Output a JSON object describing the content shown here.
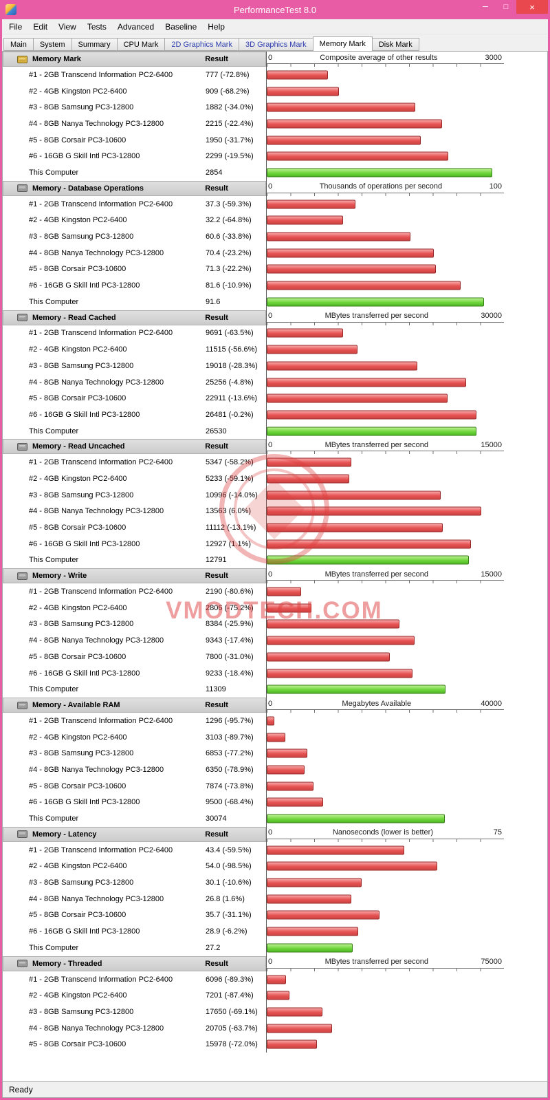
{
  "window": {
    "title": "PerformanceTest 8.0",
    "status_bar": {
      "text": "Ready"
    },
    "controls": {
      "minimize": "─",
      "maximize": "□",
      "close": "×"
    }
  },
  "colors": {
    "titlebar": "#e85ca6",
    "close_button": "#e9484f",
    "section_header_bg": "#e0e0e0",
    "bar_red": "#e65252",
    "bar_red_border": "#972828",
    "bar_green": "#6fd63c",
    "bar_green_border": "#357f14"
  },
  "menu": {
    "items": [
      "File",
      "Edit",
      "View",
      "Tests",
      "Advanced",
      "Baseline",
      "Help"
    ]
  },
  "tabs": [
    {
      "label": "Main"
    },
    {
      "label": "System"
    },
    {
      "label": "Summary"
    },
    {
      "label": "CPU Mark"
    },
    {
      "label": "2D Graphics Mark",
      "blue": true
    },
    {
      "label": "3D Graphics Mark",
      "blue": true
    },
    {
      "label": "Memory Mark",
      "active": true
    },
    {
      "label": "Disk Mark"
    }
  ],
  "table": {
    "result_header": "Result"
  },
  "watermark": {
    "text": "VMODTECH.COM"
  },
  "sections": [
    {
      "title": "Memory Mark",
      "scale": {
        "min": "0",
        "max_label": "3000",
        "max": 3000,
        "title": "Composite average of other results"
      },
      "rows": [
        {
          "name": "#1 - 2GB Transcend Information PC2-6400",
          "result": "777 (-72.8%)",
          "value": 777
        },
        {
          "name": "#2 - 4GB Kingston PC2-6400",
          "result": "909 (-68.2%)",
          "value": 909
        },
        {
          "name": "#3 - 8GB Samsung PC3-12800",
          "result": "1882 (-34.0%)",
          "value": 1882
        },
        {
          "name": "#4 - 8GB Nanya Technology PC3-12800",
          "result": "2215 (-22.4%)",
          "value": 2215
        },
        {
          "name": "#5 - 8GB Corsair PC3-10600",
          "result": "1950 (-31.7%)",
          "value": 1950
        },
        {
          "name": "#6 - 16GB G Skill Intl PC3-12800",
          "result": "2299 (-19.5%)",
          "value": 2299
        },
        {
          "name": "This Computer",
          "result": "2854",
          "value": 2854,
          "green": true
        }
      ]
    },
    {
      "title": "Memory - Database Operations",
      "scale": {
        "min": "0",
        "max_label": "100",
        "max": 100,
        "title": "Thousands of operations per second"
      },
      "rows": [
        {
          "name": "#1 - 2GB Transcend Information PC2-6400",
          "result": "37.3 (-59.3%)",
          "value": 37.3
        },
        {
          "name": "#2 - 4GB Kingston PC2-6400",
          "result": "32.2 (-64.8%)",
          "value": 32.2
        },
        {
          "name": "#3 - 8GB Samsung PC3-12800",
          "result": "60.6 (-33.8%)",
          "value": 60.6
        },
        {
          "name": "#4 - 8GB Nanya Technology PC3-12800",
          "result": "70.4 (-23.2%)",
          "value": 70.4
        },
        {
          "name": "#5 - 8GB Corsair PC3-10600",
          "result": "71.3 (-22.2%)",
          "value": 71.3
        },
        {
          "name": "#6 - 16GB G Skill Intl PC3-12800",
          "result": "81.6 (-10.9%)",
          "value": 81.6
        },
        {
          "name": "This Computer",
          "result": "91.6",
          "value": 91.6,
          "green": true
        }
      ]
    },
    {
      "title": "Memory - Read Cached",
      "scale": {
        "min": "0",
        "max_label": "30000",
        "max": 30000,
        "title": "MBytes transferred per second"
      },
      "rows": [
        {
          "name": "#1 - 2GB Transcend Information PC2-6400",
          "result": "9691 (-63.5%)",
          "value": 9691
        },
        {
          "name": "#2 - 4GB Kingston PC2-6400",
          "result": "11515 (-56.6%)",
          "value": 11515
        },
        {
          "name": "#3 - 8GB Samsung PC3-12800",
          "result": "19018 (-28.3%)",
          "value": 19018
        },
        {
          "name": "#4 - 8GB Nanya Technology PC3-12800",
          "result": "25256 (-4.8%)",
          "value": 25256
        },
        {
          "name": "#5 - 8GB Corsair PC3-10600",
          "result": "22911 (-13.6%)",
          "value": 22911
        },
        {
          "name": "#6 - 16GB G Skill Intl PC3-12800",
          "result": "26481 (-0.2%)",
          "value": 26481
        },
        {
          "name": "This Computer",
          "result": "26530",
          "value": 26530,
          "green": true
        }
      ]
    },
    {
      "title": "Memory - Read Uncached",
      "scale": {
        "min": "0",
        "max_label": "15000",
        "max": 15000,
        "title": "MBytes transferred per second"
      },
      "rows": [
        {
          "name": "#1 - 2GB Transcend Information PC2-6400",
          "result": "5347 (-58.2%)",
          "value": 5347
        },
        {
          "name": "#2 - 4GB Kingston PC2-6400",
          "result": "5233 (-59.1%)",
          "value": 5233
        },
        {
          "name": "#3 - 8GB Samsung PC3-12800",
          "result": "10996 (-14.0%)",
          "value": 10996
        },
        {
          "name": "#4 - 8GB Nanya Technology PC3-12800",
          "result": "13563 (6.0%)",
          "value": 13563
        },
        {
          "name": "#5 - 8GB Corsair PC3-10600",
          "result": "11112 (-13.1%)",
          "value": 11112
        },
        {
          "name": "#6 - 16GB G Skill Intl PC3-12800",
          "result": "12927 (1.1%)",
          "value": 12927
        },
        {
          "name": "This Computer",
          "result": "12791",
          "value": 12791,
          "green": true
        }
      ]
    },
    {
      "title": "Memory - Write",
      "scale": {
        "min": "0",
        "max_label": "15000",
        "max": 15000,
        "title": "MBytes transferred per second"
      },
      "rows": [
        {
          "name": "#1 - 2GB Transcend Information PC2-6400",
          "result": "2190 (-80.6%)",
          "value": 2190
        },
        {
          "name": "#2 - 4GB Kingston PC2-6400",
          "result": "2806 (-75.2%)",
          "value": 2806
        },
        {
          "name": "#3 - 8GB Samsung PC3-12800",
          "result": "8384 (-25.9%)",
          "value": 8384
        },
        {
          "name": "#4 - 8GB Nanya Technology PC3-12800",
          "result": "9343 (-17.4%)",
          "value": 9343
        },
        {
          "name": "#5 - 8GB Corsair PC3-10600",
          "result": "7800 (-31.0%)",
          "value": 7800
        },
        {
          "name": "#6 - 16GB G Skill Intl PC3-12800",
          "result": "9233 (-18.4%)",
          "value": 9233
        },
        {
          "name": "This Computer",
          "result": "11309",
          "value": 11309,
          "green": true
        }
      ]
    },
    {
      "title": "Memory - Available RAM",
      "scale": {
        "min": "0",
        "max_label": "40000",
        "max": 40000,
        "title": "Megabytes Available"
      },
      "rows": [
        {
          "name": "#1 - 2GB Transcend Information PC2-6400",
          "result": "1296 (-95.7%)",
          "value": 1296
        },
        {
          "name": "#2 - 4GB Kingston PC2-6400",
          "result": "3103 (-89.7%)",
          "value": 3103
        },
        {
          "name": "#3 - 8GB Samsung PC3-12800",
          "result": "6853 (-77.2%)",
          "value": 6853
        },
        {
          "name": "#4 - 8GB Nanya Technology PC3-12800",
          "result": "6350 (-78.9%)",
          "value": 6350
        },
        {
          "name": "#5 - 8GB Corsair PC3-10600",
          "result": "7874 (-73.8%)",
          "value": 7874
        },
        {
          "name": "#6 - 16GB G Skill Intl PC3-12800",
          "result": "9500 (-68.4%)",
          "value": 9500
        },
        {
          "name": "This Computer",
          "result": "30074",
          "value": 30074,
          "green": true
        }
      ]
    },
    {
      "title": "Memory - Latency",
      "scale": {
        "min": "0",
        "max_label": "75",
        "max": 75,
        "title": "Nanoseconds (lower is better)"
      },
      "rows": [
        {
          "name": "#1 - 2GB Transcend Information PC2-6400",
          "result": "43.4 (-59.5%)",
          "value": 43.4
        },
        {
          "name": "#2 - 4GB Kingston PC2-6400",
          "result": "54.0 (-98.5%)",
          "value": 54.0
        },
        {
          "name": "#3 - 8GB Samsung PC3-12800",
          "result": "30.1 (-10.6%)",
          "value": 30.1
        },
        {
          "name": "#4 - 8GB Nanya Technology PC3-12800",
          "result": "26.8 (1.6%)",
          "value": 26.8
        },
        {
          "name": "#5 - 8GB Corsair PC3-10600",
          "result": "35.7 (-31.1%)",
          "value": 35.7
        },
        {
          "name": "#6 - 16GB G Skill Intl PC3-12800",
          "result": "28.9 (-6.2%)",
          "value": 28.9
        },
        {
          "name": "This Computer",
          "result": "27.2",
          "value": 27.2,
          "green": true
        }
      ]
    },
    {
      "title": "Memory - Threaded",
      "scale": {
        "min": "0",
        "max_label": "75000",
        "max": 75000,
        "title": "MBytes transferred per second"
      },
      "rows": [
        {
          "name": "#1 - 2GB Transcend Information PC2-6400",
          "result": "6096 (-89.3%)",
          "value": 6096
        },
        {
          "name": "#2 - 4GB Kingston PC2-6400",
          "result": "7201 (-87.4%)",
          "value": 7201
        },
        {
          "name": "#3 - 8GB Samsung PC3-12800",
          "result": "17650 (-69.1%)",
          "value": 17650
        },
        {
          "name": "#4 - 8GB Nanya Technology PC3-12800",
          "result": "20705 (-63.7%)",
          "value": 20705
        },
        {
          "name": "#5 - 8GB Corsair PC3-10600",
          "result": "15978 (-72.0%)",
          "value": 15978
        }
      ]
    }
  ]
}
